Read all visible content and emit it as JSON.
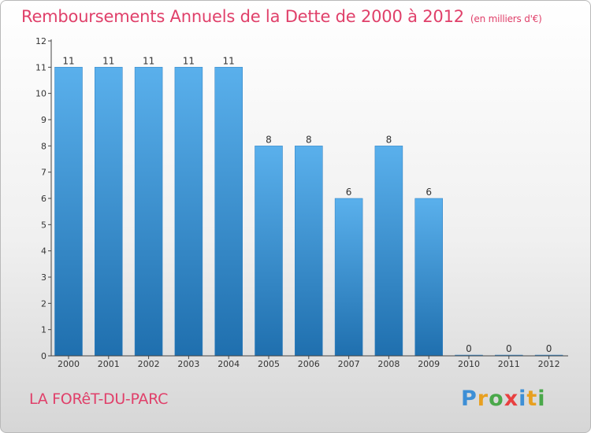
{
  "chart_data": {
    "type": "bar",
    "title": "Remboursements Annuels de la Dette de 2000 à 2012",
    "subtitle": "(en milliers d'€)",
    "categories": [
      "2000",
      "2001",
      "2002",
      "2003",
      "2004",
      "2005",
      "2006",
      "2007",
      "2008",
      "2009",
      "2010",
      "2011",
      "2012"
    ],
    "values": [
      11,
      11,
      11,
      11,
      11,
      8,
      8,
      6,
      8,
      6,
      0,
      0,
      0
    ],
    "data_labels": [
      "11",
      "11",
      "11",
      "11",
      "11",
      "8",
      "8",
      "6",
      "8",
      "6",
      "0",
      "0",
      "0"
    ],
    "yticks": [
      "0",
      "1",
      "2",
      "3",
      "4",
      "5",
      "6",
      "7",
      "8",
      "9",
      "10",
      "11",
      "12"
    ],
    "ylim": [
      0,
      12
    ],
    "xlabel": "",
    "ylabel": "",
    "bar_color": "#3a8fd6",
    "grid": false
  },
  "footer": {
    "place": "LA FORêT-DU-PARC",
    "brand": "Proxiti",
    "brand_letters": [
      "P",
      "r",
      "o",
      "x",
      "i",
      "t",
      "i"
    ],
    "brand_colors": [
      "#3d8fd6",
      "#e8a020",
      "#4aa84a",
      "#e84040",
      "#3d8fd6",
      "#e8a020",
      "#4aa84a"
    ]
  }
}
